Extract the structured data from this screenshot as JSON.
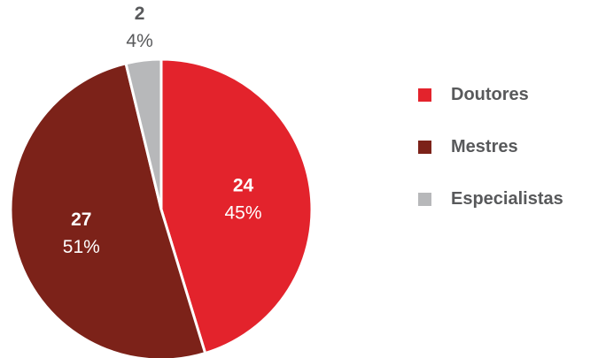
{
  "chart_data": {
    "type": "pie",
    "slices": [
      {
        "name": "Doutores",
        "value": 24,
        "percent_label": "45%",
        "color": "#e3232c",
        "label_color": "#ffffff"
      },
      {
        "name": "Mestres",
        "value": 27,
        "percent_label": "51%",
        "color": "#7c2219",
        "label_color": "#ffffff"
      },
      {
        "name": "Especialistas",
        "value": 2,
        "percent_label": "4%",
        "color": "#b7b8ba",
        "label_color": "#58595b"
      }
    ],
    "start_angle_deg": 0,
    "direction": "clockwise",
    "legend_position": "right"
  }
}
